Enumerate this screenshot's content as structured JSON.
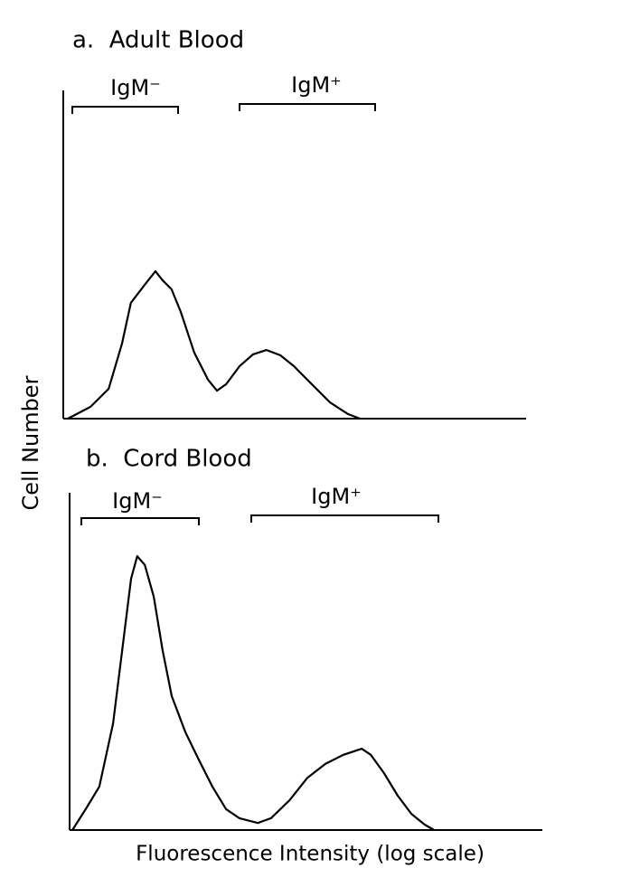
{
  "chart_data": [
    {
      "type": "line",
      "title": "a.  Adult Blood",
      "ylabel": "Cell Number",
      "annotations": [
        "IgM⁻",
        "IgM⁺"
      ],
      "x": [
        1.0,
        5.9,
        9.8,
        12.7,
        14.6,
        17.6,
        19.9,
        21.5,
        23.4,
        25.4,
        28.3,
        31.3,
        33.2,
        35.2,
        38.1,
        41.0,
        43.9,
        46.9,
        49.8,
        53.7,
        57.6,
        61.5,
        64.1
      ],
      "values": [
        0,
        3.6,
        9.1,
        22.9,
        35.3,
        40.8,
        44.9,
        42.1,
        39.4,
        32.5,
        20.1,
        11.8,
        8.5,
        10.5,
        16.0,
        19.6,
        20.9,
        19.3,
        16.0,
        10.5,
        5.0,
        1.4,
        0
      ],
      "color": "#000000",
      "xlim": [
        0,
        100
      ],
      "ylim": [
        0,
        100
      ]
    },
    {
      "type": "line",
      "title": "b.  Cord Blood",
      "xlabel": "Fluorescence Intensity (log scale)",
      "annotations": [
        "IgM⁻",
        "IgM⁺"
      ],
      "x": [
        0.6,
        3.4,
        6.3,
        9.2,
        11.1,
        13.0,
        14.3,
        15.9,
        17.8,
        19.7,
        21.6,
        24.5,
        27.3,
        30.2,
        33.1,
        35.9,
        39.8,
        42.6,
        46.5,
        50.3,
        54.1,
        57.9,
        61.8,
        63.7,
        66.5,
        69.4,
        72.3,
        75.1,
        77.1
      ],
      "values": [
        0,
        6.2,
        12.9,
        31.6,
        53.1,
        74.5,
        81.2,
        78.6,
        69.2,
        53.1,
        39.7,
        29.0,
        20.9,
        12.9,
        6.2,
        3.5,
        2.1,
        3.5,
        8.8,
        15.5,
        19.6,
        22.3,
        24.1,
        22.3,
        16.9,
        10.2,
        4.8,
        1.6,
        0
      ],
      "color": "#000000",
      "xlim": [
        0,
        100
      ],
      "ylim": [
        0,
        100
      ]
    }
  ]
}
